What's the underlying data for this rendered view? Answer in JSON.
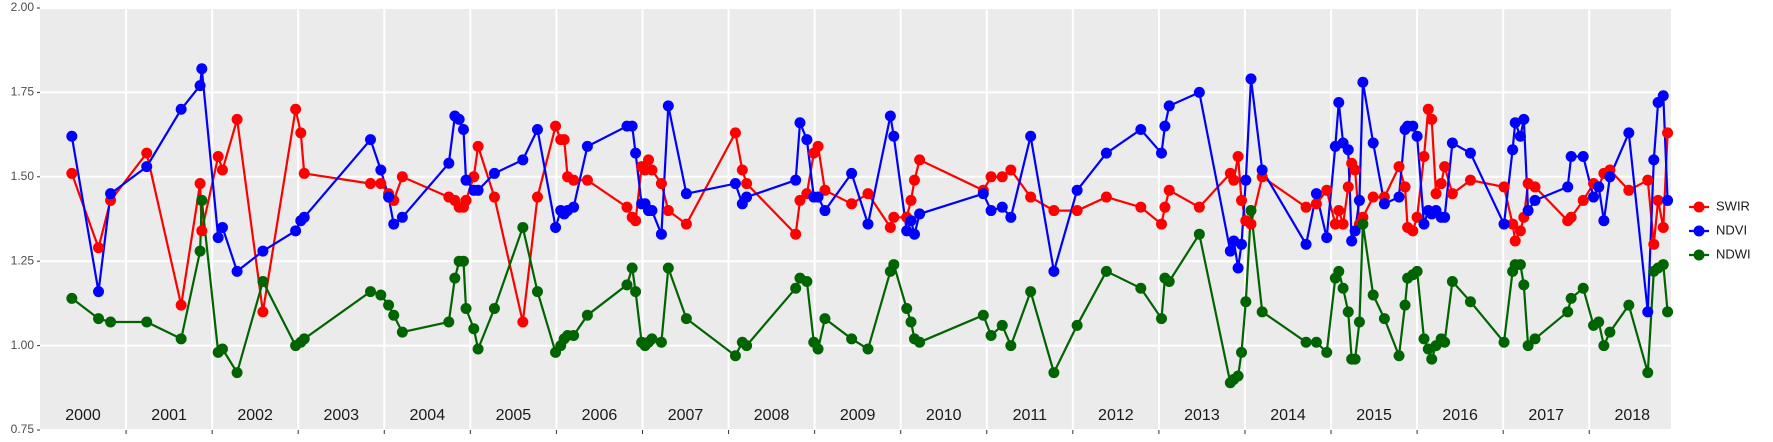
{
  "chart_data": {
    "type": "line",
    "x": [
      2000.37,
      2000.68,
      2000.82,
      2001.24,
      2001.64,
      2001.86,
      2001.88,
      2002.07,
      2002.12,
      2002.29,
      2002.59,
      2002.97,
      2003.03,
      2003.07,
      2003.84,
      2003.96,
      2004.05,
      2004.11,
      2004.21,
      2004.75,
      2004.82,
      2004.87,
      2004.92,
      2004.95,
      2005.04,
      2005.09,
      2005.28,
      2005.61,
      2005.78,
      2005.99,
      2006.05,
      2006.09,
      2006.13,
      2006.2,
      2006.36,
      2006.82,
      2006.88,
      2006.92,
      2006.99,
      2007.03,
      2007.07,
      2007.11,
      2007.22,
      2007.3,
      2007.51,
      2008.08,
      2008.16,
      2008.21,
      2008.78,
      2008.83,
      2008.91,
      2008.99,
      2009.04,
      2009.12,
      2009.43,
      2009.62,
      2009.88,
      2009.92,
      2010.07,
      2010.12,
      2010.16,
      2010.22,
      2010.96,
      2011.05,
      2011.18,
      2011.28,
      2011.51,
      2011.78,
      2012.05,
      2012.39,
      2012.79,
      2013.03,
      2013.07,
      2013.12,
      2013.47,
      2013.83,
      2013.87,
      2013.92,
      2013.96,
      2014.01,
      2014.07,
      2014.2,
      2014.71,
      2014.83,
      2014.95,
      2015.05,
      2015.09,
      2015.14,
      2015.2,
      2015.24,
      2015.28,
      2015.33,
      2015.37,
      2015.49,
      2015.62,
      2015.79,
      2015.86,
      2015.89,
      2015.95,
      2016.0,
      2016.08,
      2016.13,
      2016.17,
      2016.22,
      2016.28,
      2016.32,
      2016.41,
      2016.62,
      2017.01,
      2017.11,
      2017.14,
      2017.2,
      2017.24,
      2017.29,
      2017.37,
      2017.75,
      2017.79,
      2017.93,
      2018.05,
      2018.11,
      2018.17,
      2018.24,
      2018.46,
      2018.68,
      2018.75,
      2018.8,
      2018.86,
      2018.91
    ],
    "series": [
      {
        "name": "SWIR",
        "color": "#ff0000",
        "values": [
          1.51,
          1.29,
          1.43,
          1.57,
          1.12,
          1.48,
          1.34,
          1.56,
          1.52,
          1.67,
          1.1,
          1.7,
          1.63,
          1.51,
          1.48,
          1.48,
          1.45,
          1.43,
          1.5,
          1.44,
          1.43,
          1.41,
          1.41,
          1.43,
          1.5,
          1.59,
          1.44,
          1.07,
          1.44,
          1.65,
          1.61,
          1.61,
          1.5,
          1.49,
          1.49,
          1.41,
          1.38,
          1.37,
          1.53,
          1.52,
          1.55,
          1.52,
          1.48,
          1.4,
          1.36,
          1.63,
          1.52,
          1.48,
          1.33,
          1.43,
          1.45,
          1.57,
          1.59,
          1.46,
          1.42,
          1.45,
          1.35,
          1.38,
          1.38,
          1.43,
          1.49,
          1.55,
          1.46,
          1.5,
          1.5,
          1.52,
          1.44,
          1.4,
          1.4,
          1.44,
          1.41,
          1.36,
          1.41,
          1.46,
          1.41,
          1.51,
          1.49,
          1.56,
          1.43,
          1.37,
          1.36,
          1.5,
          1.41,
          1.42,
          1.46,
          1.36,
          1.4,
          1.36,
          1.47,
          1.54,
          1.52,
          1.36,
          1.38,
          1.44,
          1.44,
          1.53,
          1.47,
          1.35,
          1.34,
          1.38,
          1.56,
          1.7,
          1.67,
          1.45,
          1.48,
          1.53,
          1.45,
          1.49,
          1.47,
          1.36,
          1.31,
          1.34,
          1.38,
          1.48,
          1.47,
          1.37,
          1.38,
          1.43,
          1.48,
          1.47,
          1.51,
          1.52,
          1.46,
          1.49,
          1.3,
          1.43,
          1.35,
          1.63
        ]
      },
      {
        "name": "NDVI",
        "color": "#0000ff",
        "values": [
          1.62,
          1.16,
          1.45,
          1.53,
          1.7,
          1.77,
          1.82,
          1.32,
          1.35,
          1.22,
          1.28,
          1.34,
          1.37,
          1.38,
          1.61,
          1.52,
          1.44,
          1.36,
          1.38,
          1.54,
          1.68,
          1.67,
          1.64,
          1.49,
          1.46,
          1.46,
          1.51,
          1.55,
          1.64,
          1.35,
          1.4,
          1.39,
          1.4,
          1.41,
          1.59,
          1.65,
          1.65,
          1.57,
          1.42,
          1.42,
          1.4,
          1.4,
          1.33,
          1.71,
          1.45,
          1.48,
          1.42,
          1.44,
          1.49,
          1.66,
          1.61,
          1.44,
          1.44,
          1.4,
          1.51,
          1.36,
          1.68,
          1.62,
          1.34,
          1.37,
          1.33,
          1.39,
          1.45,
          1.4,
          1.41,
          1.38,
          1.62,
          1.22,
          1.46,
          1.57,
          1.64,
          1.57,
          1.65,
          1.71,
          1.75,
          1.28,
          1.31,
          1.23,
          1.3,
          1.49,
          1.79,
          1.52,
          1.3,
          1.45,
          1.32,
          1.59,
          1.72,
          1.6,
          1.58,
          1.31,
          1.34,
          1.43,
          1.78,
          1.6,
          1.42,
          1.44,
          1.64,
          1.65,
          1.65,
          1.62,
          1.36,
          1.4,
          1.39,
          1.4,
          1.38,
          1.38,
          1.6,
          1.57,
          1.36,
          1.58,
          1.66,
          1.62,
          1.67,
          1.4,
          1.43,
          1.47,
          1.56,
          1.56,
          1.44,
          1.47,
          1.37,
          1.5,
          1.63,
          1.1,
          1.55,
          1.72,
          1.74,
          1.43
        ]
      },
      {
        "name": "NDWI",
        "color": "#006400",
        "values": [
          1.14,
          1.08,
          1.07,
          1.07,
          1.02,
          1.28,
          1.43,
          0.98,
          0.99,
          0.92,
          1.19,
          1.0,
          1.01,
          1.02,
          1.16,
          1.15,
          1.12,
          1.09,
          1.04,
          1.07,
          1.2,
          1.25,
          1.25,
          1.11,
          1.05,
          0.99,
          1.11,
          1.35,
          1.16,
          0.98,
          1.0,
          1.02,
          1.03,
          1.03,
          1.09,
          1.18,
          1.23,
          1.16,
          1.01,
          1.0,
          1.01,
          1.02,
          1.01,
          1.23,
          1.08,
          0.97,
          1.01,
          1.0,
          1.17,
          1.2,
          1.19,
          1.01,
          0.99,
          1.08,
          1.02,
          0.99,
          1.22,
          1.24,
          1.11,
          1.07,
          1.02,
          1.01,
          1.09,
          1.03,
          1.06,
          1.0,
          1.16,
          0.92,
          1.06,
          1.22,
          1.17,
          1.08,
          1.2,
          1.19,
          1.33,
          0.89,
          0.9,
          0.91,
          0.98,
          1.13,
          1.4,
          1.1,
          1.01,
          1.01,
          0.98,
          1.2,
          1.22,
          1.17,
          1.1,
          0.96,
          0.96,
          1.07,
          1.36,
          1.15,
          1.08,
          0.97,
          1.12,
          1.2,
          1.21,
          1.22,
          1.02,
          0.99,
          0.96,
          1.0,
          1.02,
          1.01,
          1.19,
          1.13,
          1.01,
          1.22,
          1.24,
          1.24,
          1.18,
          1.0,
          1.02,
          1.1,
          1.14,
          1.17,
          1.06,
          1.07,
          1.0,
          1.04,
          1.12,
          0.92,
          1.22,
          1.23,
          1.24,
          1.1
        ]
      }
    ],
    "xlim": [
      2000.0,
      2018.95
    ],
    "xticks": [
      2001,
      2002,
      2003,
      2004,
      2005,
      2006,
      2007,
      2008,
      2009,
      2010,
      2011,
      2012,
      2013,
      2014,
      2015,
      2016,
      2017,
      2018
    ],
    "year_labels": [
      "2000",
      "2001",
      "2002",
      "2003",
      "2004",
      "2005",
      "2006",
      "2007",
      "2008",
      "2009",
      "2010",
      "2011",
      "2012",
      "2013",
      "2014",
      "2015",
      "2016",
      "2017",
      "2018"
    ],
    "ylim": [
      0.75,
      2.0
    ],
    "yticks": [
      {
        "value": 0.75,
        "label": "0.75"
      },
      {
        "value": 1.0,
        "label": "1.00"
      },
      {
        "value": 1.25,
        "label": "1.25"
      },
      {
        "value": 1.5,
        "label": "1.50"
      },
      {
        "value": 1.75,
        "label": "1.75"
      },
      {
        "value": 2.0,
        "label": "2.00"
      }
    ],
    "grid": true,
    "legend": "right"
  }
}
